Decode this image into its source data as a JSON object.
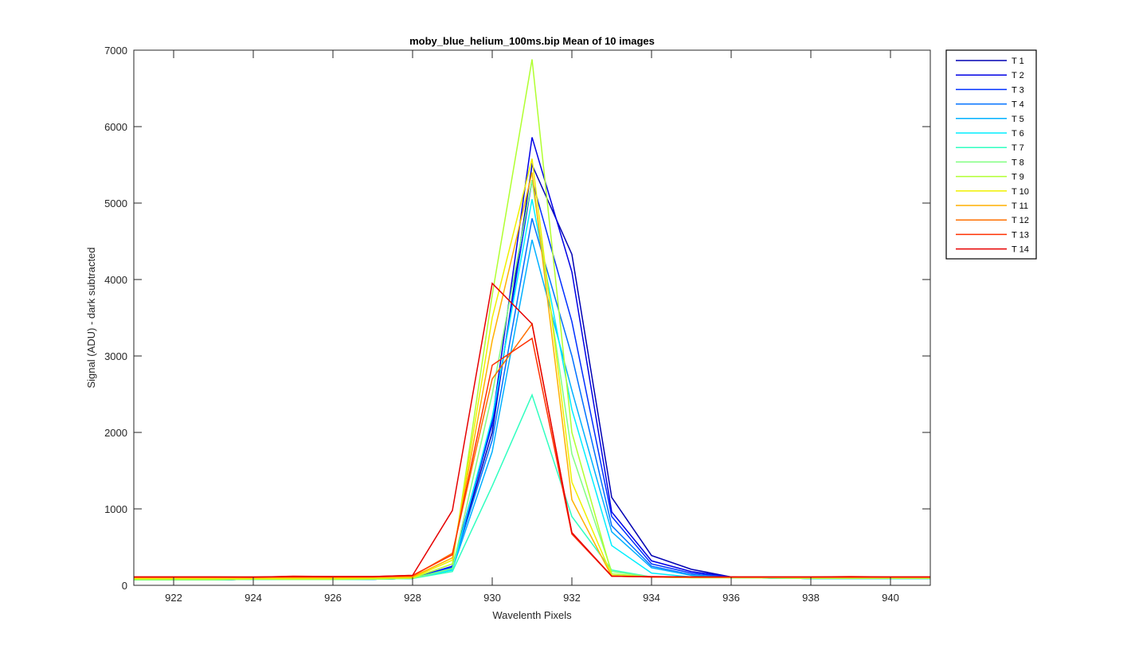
{
  "chart_data": {
    "type": "line",
    "title": "moby_blue_helium_100ms.bip  Mean of 10 images",
    "xlabel": "Wavelenth Pixels",
    "ylabel": "Signal (ADU) - dark subtracted",
    "xlim": [
      921,
      941
    ],
    "ylim": [
      0,
      7000
    ],
    "xticks": [
      922,
      924,
      926,
      928,
      930,
      932,
      934,
      936,
      938,
      940
    ],
    "yticks": [
      0,
      1000,
      2000,
      3000,
      4000,
      5000,
      6000,
      7000
    ],
    "grid": false,
    "legend_position": "outside-top-right",
    "x": [
      921,
      922,
      923,
      924,
      925,
      926,
      927,
      928,
      929,
      930,
      931,
      932,
      933,
      934,
      935,
      936,
      937,
      938,
      939,
      940,
      941
    ],
    "series": [
      {
        "name": "T 1",
        "color": "#0000b3",
        "values": [
          70,
          70,
          70,
          80,
          75,
          75,
          80,
          90,
          230,
          2000,
          5500,
          4330,
          1150,
          390,
          210,
          110,
          95,
          90,
          90,
          90,
          90
        ]
      },
      {
        "name": "T 2",
        "color": "#0000e6",
        "values": [
          70,
          70,
          70,
          80,
          75,
          75,
          80,
          90,
          250,
          2150,
          5860,
          4100,
          960,
          320,
          180,
          110,
          95,
          90,
          90,
          90,
          90
        ]
      },
      {
        "name": "T 3",
        "color": "#0030ff",
        "values": [
          70,
          70,
          70,
          80,
          75,
          75,
          80,
          90,
          240,
          2100,
          5300,
          3450,
          900,
          280,
          160,
          105,
          95,
          90,
          90,
          90,
          90
        ]
      },
      {
        "name": "T 4",
        "color": "#0070ff",
        "values": [
          70,
          70,
          70,
          80,
          75,
          75,
          80,
          90,
          230,
          1900,
          4800,
          3000,
          780,
          250,
          140,
          100,
          95,
          90,
          90,
          90,
          90
        ]
      },
      {
        "name": "T 5",
        "color": "#00b0ff",
        "values": [
          70,
          70,
          70,
          80,
          75,
          75,
          80,
          90,
          210,
          1750,
          4520,
          2550,
          700,
          230,
          130,
          100,
          95,
          90,
          90,
          90,
          90
        ]
      },
      {
        "name": "T 6",
        "color": "#00eeff",
        "values": [
          70,
          70,
          70,
          80,
          75,
          75,
          80,
          90,
          200,
          2200,
          5050,
          2300,
          520,
          160,
          110,
          100,
          95,
          90,
          90,
          90,
          90
        ]
      },
      {
        "name": "T 7",
        "color": "#30ffc0",
        "values": [
          70,
          70,
          70,
          80,
          75,
          75,
          80,
          90,
          180,
          1300,
          2490,
          900,
          200,
          110,
          100,
          100,
          95,
          90,
          90,
          90,
          90
        ]
      },
      {
        "name": "T 8",
        "color": "#80ff80",
        "values": [
          70,
          70,
          70,
          80,
          75,
          75,
          80,
          90,
          220,
          2500,
          5300,
          1720,
          180,
          110,
          100,
          100,
          95,
          90,
          90,
          90,
          90
        ]
      },
      {
        "name": "T 9",
        "color": "#b0ff30",
        "values": [
          80,
          80,
          80,
          80,
          80,
          80,
          85,
          95,
          280,
          3800,
          6880,
          2000,
          150,
          110,
          100,
          100,
          100,
          95,
          95,
          95,
          95
        ]
      },
      {
        "name": "T 10",
        "color": "#f0f000",
        "values": [
          90,
          90,
          90,
          90,
          90,
          90,
          95,
          100,
          330,
          3500,
          5580,
          1350,
          130,
          110,
          100,
          100,
          100,
          100,
          100,
          100,
          100
        ]
      },
      {
        "name": "T 11",
        "color": "#ffb000",
        "values": [
          100,
          100,
          100,
          100,
          100,
          100,
          105,
          110,
          360,
          3200,
          5400,
          1120,
          120,
          110,
          105,
          105,
          105,
          105,
          105,
          105,
          105
        ]
      },
      {
        "name": "T 12",
        "color": "#ff7000",
        "values": [
          110,
          110,
          110,
          110,
          110,
          110,
          110,
          120,
          420,
          2700,
          3420,
          680,
          120,
          110,
          110,
          110,
          110,
          110,
          110,
          110,
          110
        ]
      },
      {
        "name": "T 13",
        "color": "#ff3000",
        "values": [
          110,
          110,
          110,
          105,
          120,
          115,
          115,
          130,
          400,
          2880,
          3230,
          670,
          120,
          110,
          110,
          110,
          110,
          110,
          115,
          110,
          110
        ]
      },
      {
        "name": "T 14",
        "color": "#e60000",
        "values": [
          110,
          110,
          110,
          110,
          115,
          115,
          115,
          130,
          980,
          3950,
          3420,
          690,
          120,
          115,
          110,
          110,
          110,
          110,
          110,
          110,
          110
        ]
      }
    ]
  }
}
